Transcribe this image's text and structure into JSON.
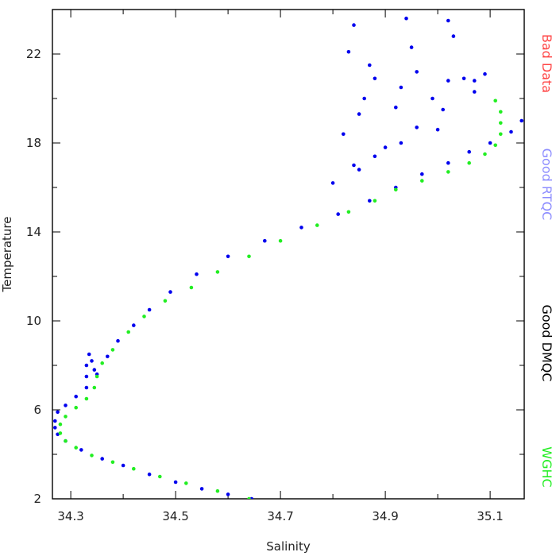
{
  "chart_data": {
    "type": "scatter",
    "title": "",
    "xlabel": "Salinity",
    "ylabel": "Temperature",
    "xlim": [
      34.265,
      35.165
    ],
    "ylim": [
      2,
      24
    ],
    "xticks": [
      34.3,
      34.5,
      34.7,
      34.9,
      35.1
    ],
    "xtick_labels": [
      "34.3",
      "34.5",
      "34.7",
      "34.9",
      "35.1"
    ],
    "x_minor_ticks": [
      34.4,
      34.6,
      34.8,
      35.0
    ],
    "yticks": [
      2,
      6,
      10,
      14,
      18,
      22
    ],
    "ytick_labels": [
      "2",
      "6",
      "10",
      "14",
      "18",
      "22"
    ],
    "y_minor_ticks": [
      4,
      8,
      12,
      16,
      20,
      24
    ],
    "grid": false,
    "legend": {
      "placement": "right-vertical",
      "entries": [
        {
          "label": "Bad Data",
          "color": "#ff4444"
        },
        {
          "label": "Good RTQC",
          "color": "#8c8cff"
        },
        {
          "label": "Good DMQC",
          "color": "#000000"
        },
        {
          "label": "WGHC",
          "color": "#22ee22"
        }
      ]
    },
    "series": [
      {
        "color": "#0000ee",
        "marker": "dot",
        "points": [
          [
            34.645,
            2.0
          ],
          [
            34.6,
            2.2
          ],
          [
            34.55,
            2.45
          ],
          [
            34.5,
            2.75
          ],
          [
            34.45,
            3.1
          ],
          [
            34.4,
            3.5
          ],
          [
            34.36,
            3.8
          ],
          [
            34.32,
            4.2
          ],
          [
            34.29,
            4.6
          ],
          [
            34.275,
            4.9
          ],
          [
            34.27,
            5.2
          ],
          [
            34.27,
            5.5
          ],
          [
            34.275,
            5.9
          ],
          [
            34.29,
            6.2
          ],
          [
            34.31,
            6.6
          ],
          [
            34.33,
            7.0
          ],
          [
            34.35,
            7.6
          ],
          [
            34.37,
            8.4
          ],
          [
            34.39,
            9.1
          ],
          [
            34.42,
            9.8
          ],
          [
            34.45,
            10.5
          ],
          [
            34.49,
            11.3
          ],
          [
            34.54,
            12.1
          ],
          [
            34.6,
            12.9
          ],
          [
            34.67,
            13.6
          ],
          [
            34.74,
            14.2
          ],
          [
            34.81,
            14.8
          ],
          [
            34.87,
            15.4
          ],
          [
            34.92,
            16.0
          ],
          [
            34.97,
            16.6
          ],
          [
            35.02,
            17.1
          ],
          [
            35.06,
            17.6
          ],
          [
            35.1,
            18.0
          ],
          [
            35.14,
            18.5
          ],
          [
            35.16,
            19.0
          ],
          [
            34.33,
            7.5
          ],
          [
            34.33,
            8.0
          ],
          [
            34.335,
            8.5
          ],
          [
            34.34,
            8.2
          ],
          [
            34.345,
            7.8
          ]
        ]
      },
      {
        "color": "#0000ee",
        "marker": "dot",
        "points": [
          [
            34.84,
            23.3
          ],
          [
            34.83,
            22.1
          ],
          [
            34.87,
            21.5
          ],
          [
            34.88,
            20.9
          ],
          [
            34.86,
            20.0
          ],
          [
            34.85,
            19.3
          ],
          [
            34.82,
            18.4
          ],
          [
            34.94,
            23.6
          ],
          [
            34.95,
            22.3
          ],
          [
            34.96,
            21.2
          ],
          [
            34.93,
            20.5
          ],
          [
            34.92,
            19.6
          ],
          [
            34.96,
            18.7
          ],
          [
            34.93,
            18.0
          ],
          [
            35.02,
            23.5
          ],
          [
            35.03,
            22.8
          ],
          [
            34.99,
            20.0
          ],
          [
            35.01,
            19.5
          ],
          [
            35.0,
            18.6
          ],
          [
            35.02,
            20.8
          ],
          [
            35.05,
            20.9
          ],
          [
            35.07,
            20.8
          ],
          [
            35.09,
            21.1
          ],
          [
            35.07,
            20.3
          ],
          [
            34.88,
            17.4
          ],
          [
            34.9,
            17.8
          ],
          [
            34.85,
            16.8
          ],
          [
            34.8,
            16.2
          ],
          [
            34.84,
            17.0
          ]
        ]
      },
      {
        "color": "#22ee22",
        "marker": "dot",
        "points": [
          [
            34.64,
            2.0
          ],
          [
            34.58,
            2.35
          ],
          [
            34.52,
            2.7
          ],
          [
            34.47,
            3.0
          ],
          [
            34.42,
            3.35
          ],
          [
            34.38,
            3.65
          ],
          [
            34.34,
            3.95
          ],
          [
            34.31,
            4.3
          ],
          [
            34.29,
            4.6
          ],
          [
            34.28,
            4.95
          ],
          [
            34.28,
            5.35
          ],
          [
            34.29,
            5.7
          ],
          [
            34.31,
            6.1
          ],
          [
            34.33,
            6.5
          ],
          [
            34.345,
            7.0
          ],
          [
            34.35,
            7.5
          ],
          [
            34.36,
            8.1
          ],
          [
            34.38,
            8.7
          ],
          [
            34.41,
            9.5
          ],
          [
            34.44,
            10.2
          ],
          [
            34.48,
            10.9
          ],
          [
            34.53,
            11.5
          ],
          [
            34.58,
            12.2
          ],
          [
            34.64,
            12.9
          ],
          [
            34.7,
            13.6
          ],
          [
            34.77,
            14.3
          ],
          [
            34.83,
            14.9
          ],
          [
            34.88,
            15.4
          ],
          [
            34.92,
            15.9
          ],
          [
            34.97,
            16.3
          ],
          [
            35.02,
            16.7
          ],
          [
            35.06,
            17.1
          ],
          [
            35.09,
            17.5
          ],
          [
            35.11,
            17.9
          ],
          [
            35.12,
            18.4
          ],
          [
            35.12,
            18.9
          ],
          [
            35.12,
            19.4
          ],
          [
            35.11,
            19.9
          ]
        ]
      }
    ]
  }
}
